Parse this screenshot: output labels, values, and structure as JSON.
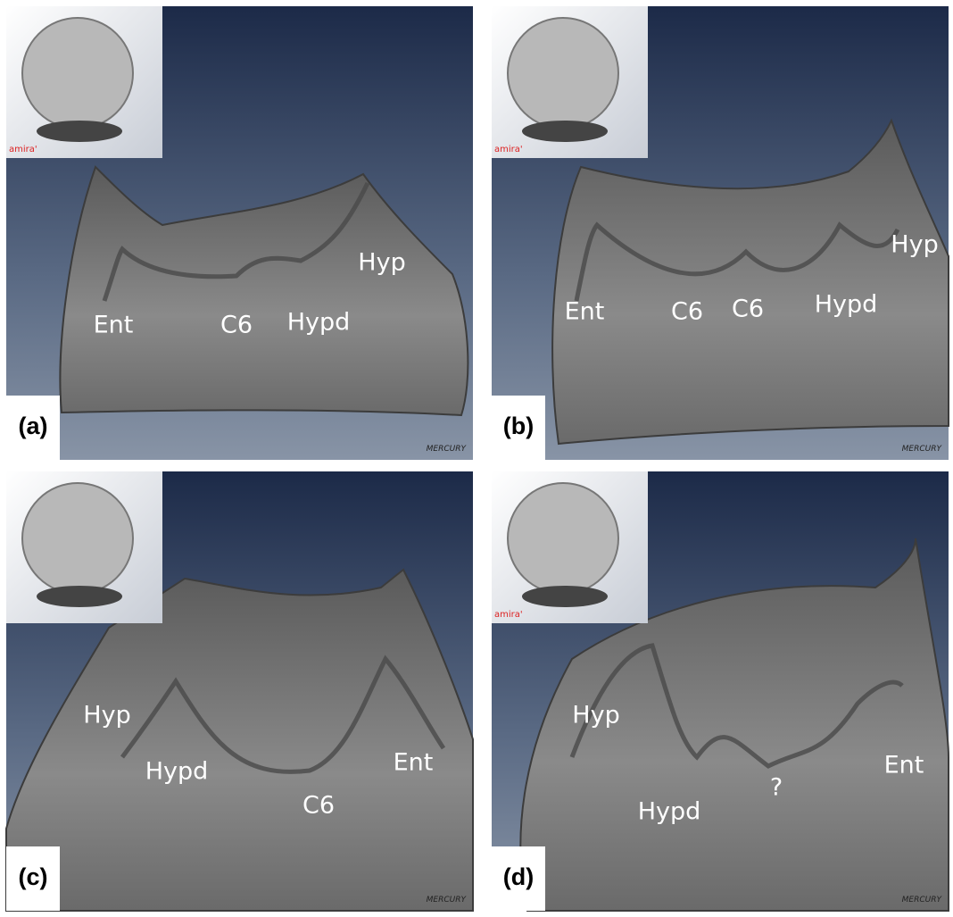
{
  "panels": [
    {
      "letter": "(a)",
      "labels": [
        "Ent",
        "C6",
        "Hypd",
        "Hyp"
      ],
      "inset_logo": "amira'",
      "watermark": "MERCURY"
    },
    {
      "letter": "(b)",
      "labels": [
        "Ent",
        "C6",
        "C6",
        "Hypd",
        "Hyp"
      ],
      "inset_logo": "amira'",
      "watermark": "MERCURY"
    },
    {
      "letter": "(c)",
      "labels": [
        "Hyp",
        "Hypd",
        "C6",
        "Ent"
      ],
      "watermark": "MERCURY"
    },
    {
      "letter": "(d)",
      "labels": [
        "Hyp",
        "Hypd",
        "?",
        "Ent"
      ],
      "inset_logo": "amira'",
      "watermark": "MERCURY"
    }
  ]
}
